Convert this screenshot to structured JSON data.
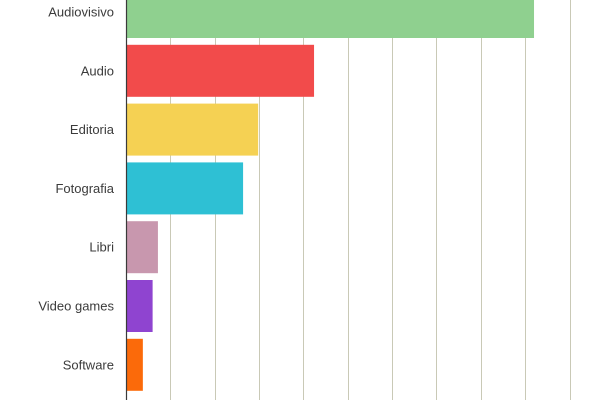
{
  "chart_data": {
    "type": "bar",
    "orientation": "horizontal",
    "title": "",
    "xlabel": "",
    "ylabel": "",
    "categories": [
      "Audiovisivo",
      "Audio",
      "Editoria",
      "Fotografia",
      "Libri",
      "Video games",
      "Software"
    ],
    "values": [
      46,
      21.2,
      14.9,
      13.2,
      3.6,
      3,
      1.9
    ],
    "colors": [
      "#8fd08f",
      "#f24b4b",
      "#f5d153",
      "#2ec0d4",
      "#c897ae",
      "#8f44d0",
      "#fb6a0a"
    ],
    "xlim": [
      0,
      53
    ],
    "grid": true,
    "legend": "none"
  }
}
